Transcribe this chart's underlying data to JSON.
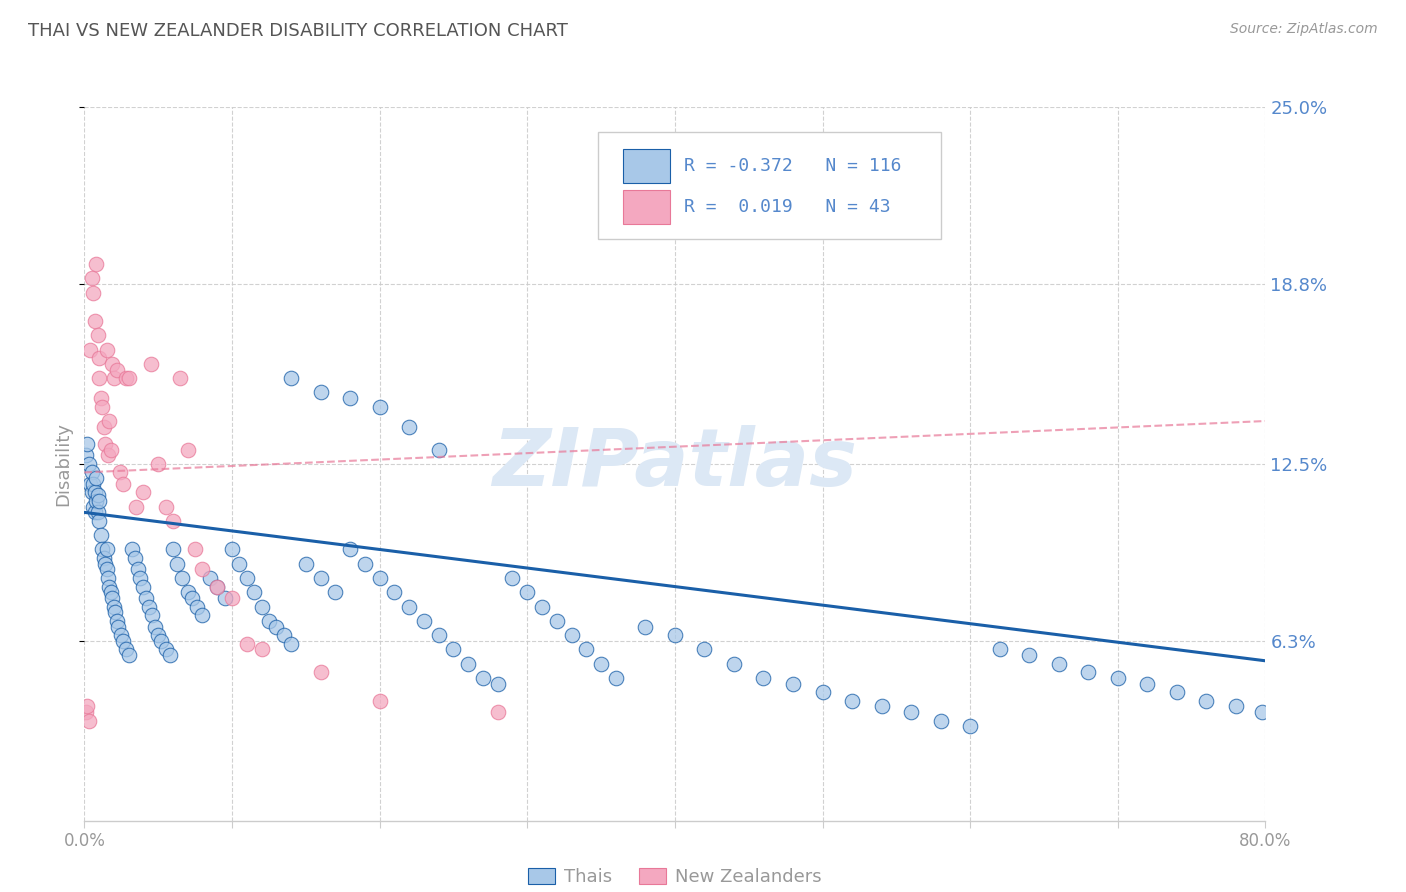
{
  "title": "THAI VS NEW ZEALANDER DISABILITY CORRELATION CHART",
  "source": "Source: ZipAtlas.com",
  "ylabel": "Disability",
  "x_min": 0.0,
  "x_max": 0.8,
  "y_min": 0.0,
  "y_max": 0.25,
  "y_ticks": [
    0.063,
    0.125,
    0.188,
    0.25
  ],
  "y_tick_labels": [
    "6.3%",
    "12.5%",
    "18.8%",
    "25.0%"
  ],
  "x_ticks": [
    0.0,
    0.1,
    0.2,
    0.3,
    0.4,
    0.5,
    0.6,
    0.7,
    0.8
  ],
  "x_tick_labels": [
    "0.0%",
    "",
    "",
    "",
    "",
    "",
    "",
    "",
    "80.0%"
  ],
  "legend_blue_label": "Thais",
  "legend_pink_label": "New Zealanders",
  "blue_color": "#a8c8e8",
  "pink_color": "#f4a8c0",
  "blue_line_color": "#1a5fa8",
  "pink_line_color": "#e87898",
  "background_color": "#ffffff",
  "watermark_color": "#dce8f5",
  "grid_color": "#cccccc",
  "title_color": "#555555",
  "axis_label_color": "#999999",
  "right_tick_color": "#5588cc",
  "blue_points_x": [
    0.001,
    0.002,
    0.003,
    0.004,
    0.005,
    0.005,
    0.006,
    0.006,
    0.007,
    0.007,
    0.008,
    0.008,
    0.009,
    0.009,
    0.01,
    0.01,
    0.011,
    0.012,
    0.013,
    0.014,
    0.015,
    0.015,
    0.016,
    0.017,
    0.018,
    0.019,
    0.02,
    0.021,
    0.022,
    0.023,
    0.025,
    0.026,
    0.028,
    0.03,
    0.032,
    0.034,
    0.036,
    0.038,
    0.04,
    0.042,
    0.044,
    0.046,
    0.048,
    0.05,
    0.052,
    0.055,
    0.058,
    0.06,
    0.063,
    0.066,
    0.07,
    0.073,
    0.076,
    0.08,
    0.085,
    0.09,
    0.095,
    0.1,
    0.105,
    0.11,
    0.115,
    0.12,
    0.125,
    0.13,
    0.135,
    0.14,
    0.15,
    0.16,
    0.17,
    0.18,
    0.19,
    0.2,
    0.21,
    0.22,
    0.23,
    0.24,
    0.25,
    0.26,
    0.27,
    0.28,
    0.29,
    0.3,
    0.31,
    0.32,
    0.33,
    0.34,
    0.35,
    0.36,
    0.38,
    0.4,
    0.42,
    0.44,
    0.46,
    0.48,
    0.5,
    0.52,
    0.54,
    0.56,
    0.58,
    0.6,
    0.62,
    0.64,
    0.66,
    0.68,
    0.7,
    0.72,
    0.74,
    0.76,
    0.78,
    0.798,
    0.14,
    0.16,
    0.18,
    0.2,
    0.22,
    0.24
  ],
  "blue_points_y": [
    0.128,
    0.132,
    0.125,
    0.118,
    0.115,
    0.122,
    0.11,
    0.118,
    0.108,
    0.115,
    0.112,
    0.12,
    0.108,
    0.114,
    0.105,
    0.112,
    0.1,
    0.095,
    0.092,
    0.09,
    0.088,
    0.095,
    0.085,
    0.082,
    0.08,
    0.078,
    0.075,
    0.073,
    0.07,
    0.068,
    0.065,
    0.063,
    0.06,
    0.058,
    0.095,
    0.092,
    0.088,
    0.085,
    0.082,
    0.078,
    0.075,
    0.072,
    0.068,
    0.065,
    0.063,
    0.06,
    0.058,
    0.095,
    0.09,
    0.085,
    0.08,
    0.078,
    0.075,
    0.072,
    0.085,
    0.082,
    0.078,
    0.095,
    0.09,
    0.085,
    0.08,
    0.075,
    0.07,
    0.068,
    0.065,
    0.062,
    0.09,
    0.085,
    0.08,
    0.095,
    0.09,
    0.085,
    0.08,
    0.075,
    0.07,
    0.065,
    0.06,
    0.055,
    0.05,
    0.048,
    0.085,
    0.08,
    0.075,
    0.07,
    0.065,
    0.06,
    0.055,
    0.05,
    0.068,
    0.065,
    0.06,
    0.055,
    0.05,
    0.048,
    0.045,
    0.042,
    0.04,
    0.038,
    0.035,
    0.033,
    0.06,
    0.058,
    0.055,
    0.052,
    0.05,
    0.048,
    0.045,
    0.042,
    0.04,
    0.038,
    0.155,
    0.15,
    0.148,
    0.145,
    0.138,
    0.13
  ],
  "pink_points_x": [
    0.001,
    0.002,
    0.003,
    0.004,
    0.005,
    0.006,
    0.007,
    0.008,
    0.009,
    0.01,
    0.01,
    0.011,
    0.012,
    0.013,
    0.014,
    0.015,
    0.016,
    0.017,
    0.018,
    0.019,
    0.02,
    0.022,
    0.024,
    0.026,
    0.028,
    0.03,
    0.035,
    0.04,
    0.045,
    0.05,
    0.055,
    0.06,
    0.065,
    0.07,
    0.075,
    0.08,
    0.09,
    0.1,
    0.11,
    0.12,
    0.16,
    0.2,
    0.28
  ],
  "pink_points_y": [
    0.038,
    0.04,
    0.035,
    0.165,
    0.19,
    0.185,
    0.175,
    0.195,
    0.17,
    0.162,
    0.155,
    0.148,
    0.145,
    0.138,
    0.132,
    0.165,
    0.128,
    0.14,
    0.13,
    0.16,
    0.155,
    0.158,
    0.122,
    0.118,
    0.155,
    0.155,
    0.11,
    0.115,
    0.16,
    0.125,
    0.11,
    0.105,
    0.155,
    0.13,
    0.095,
    0.088,
    0.082,
    0.078,
    0.062,
    0.06,
    0.052,
    0.042,
    0.038
  ],
  "blue_trend_x": [
    0.0,
    0.8
  ],
  "blue_trend_y": [
    0.108,
    0.056
  ],
  "pink_trend_x": [
    0.0,
    0.8
  ],
  "pink_trend_y": [
    0.122,
    0.14
  ]
}
